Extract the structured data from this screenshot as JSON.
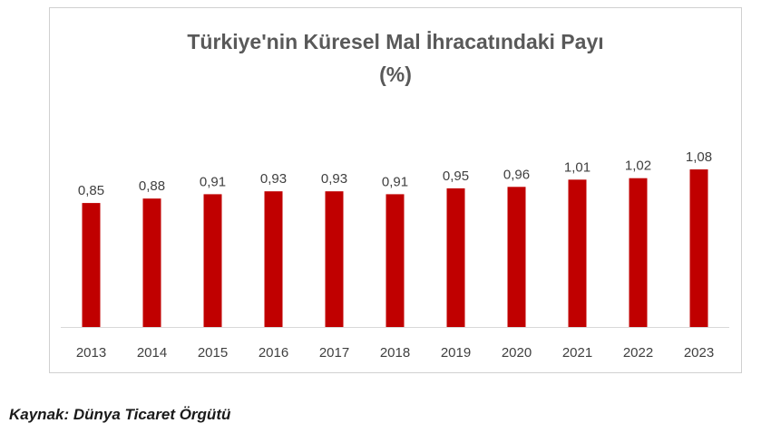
{
  "chart_data": {
    "type": "bar",
    "title": "Türkiye'nin Küresel Mal İhracatındaki Payı",
    "subtitle": "(%)",
    "categories": [
      "2013",
      "2014",
      "2015",
      "2016",
      "2017",
      "2018",
      "2019",
      "2020",
      "2021",
      "2022",
      "2023"
    ],
    "values": [
      0.85,
      0.88,
      0.91,
      0.93,
      0.93,
      0.91,
      0.95,
      0.96,
      1.01,
      1.02,
      1.08
    ],
    "labels": [
      "0,85",
      "0,88",
      "0,91",
      "0,93",
      "0,93",
      "0,91",
      "0,95",
      "0,96",
      "1,01",
      "1,02",
      "1,08"
    ],
    "xlabel": "",
    "ylabel": "",
    "grid": false,
    "legend": "none",
    "colors": {
      "bar": "#C00000",
      "axis": "#d9d9d9",
      "text": "#404040"
    }
  },
  "source_note": "Kaynak: Dünya Ticaret Örgütü"
}
